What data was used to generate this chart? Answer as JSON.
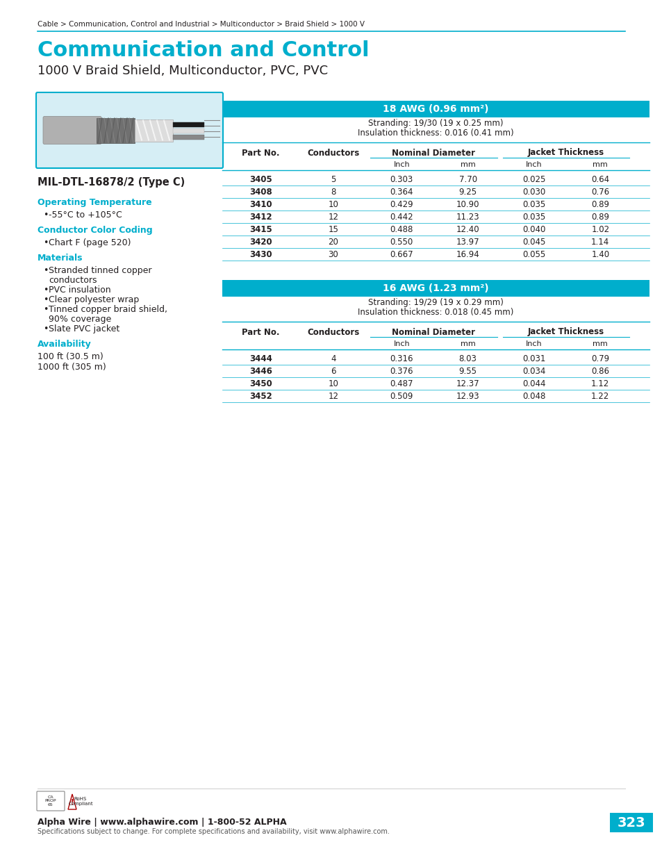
{
  "breadcrumb": "Cable > Communication, Control and Industrial > Multiconductor > Braid Shield > 1000 V",
  "main_title": "Communication and Control",
  "subtitle": "1000 V Braid Shield, Multiconductor, PVC, PVC",
  "mil_spec": "MIL-DTL-16878/2 (Type C)",
  "sections": [
    {
      "label": "Operating Temperature",
      "items": [
        "-55°C to +105°C"
      ]
    },
    {
      "label": "Conductor Color Coding",
      "items": [
        "Chart F (page 520)"
      ]
    },
    {
      "label": "Materials",
      "items": [
        "Stranded tinned copper\nconductors",
        "PVC insulation",
        "Clear polyester wrap",
        "Tinned copper braid shield,\n90% coverage",
        "Slate PVC jacket"
      ]
    },
    {
      "label": "Availability",
      "items_plain": [
        "100 ft (30.5 m)",
        "1000 ft (305 m)"
      ]
    }
  ],
  "table1": {
    "title": "18 AWG (0.96 mm²)",
    "stranding": "Stranding: 19/30 (19 x 0.25 mm)",
    "insulation": "Insulation thickness: 0.016 (0.41 mm)",
    "col_headers": [
      "Part No.",
      "Conductors",
      "Nominal Diameter",
      "",
      "Jacket Thickness",
      ""
    ],
    "sub_headers": [
      "",
      "",
      "Inch",
      "mm",
      "Inch",
      "mm"
    ],
    "rows": [
      [
        "3405",
        "5",
        "0.303",
        "7.70",
        "0.025",
        "0.64"
      ],
      [
        "3408",
        "8",
        "0.364",
        "9.25",
        "0.030",
        "0.76"
      ],
      [
        "3410",
        "10",
        "0.429",
        "10.90",
        "0.035",
        "0.89"
      ],
      [
        "3412",
        "12",
        "0.442",
        "11.23",
        "0.035",
        "0.89"
      ],
      [
        "3415",
        "15",
        "0.488",
        "12.40",
        "0.040",
        "1.02"
      ],
      [
        "3420",
        "20",
        "0.550",
        "13.97",
        "0.045",
        "1.14"
      ],
      [
        "3430",
        "30",
        "0.667",
        "16.94",
        "0.055",
        "1.40"
      ]
    ]
  },
  "table2": {
    "title": "16 AWG (1.23 mm²)",
    "stranding": "Stranding: 19/29 (19 x 0.29 mm)",
    "insulation": "Insulation thickness: 0.018 (0.45 mm)",
    "col_headers": [
      "Part No.",
      "Conductors",
      "Nominal Diameter",
      "",
      "Jacket Thickness",
      ""
    ],
    "sub_headers": [
      "",
      "",
      "Inch",
      "mm",
      "Inch",
      "mm"
    ],
    "rows": [
      [
        "3444",
        "4",
        "0.316",
        "8.03",
        "0.031",
        "0.79"
      ],
      [
        "3446",
        "6",
        "0.376",
        "9.55",
        "0.034",
        "0.86"
      ],
      [
        "3450",
        "10",
        "0.487",
        "12.37",
        "0.044",
        "1.12"
      ],
      [
        "3452",
        "12",
        "0.509",
        "12.93",
        "0.048",
        "1.22"
      ]
    ]
  },
  "footer_left": "Alpha Wire | www.alphawire.com | 1-800-52 ALPHA",
  "footer_sub": "Specifications subject to change. For complete specifications and availability, visit www.alphawire.com.",
  "page_number": "323",
  "cyan_color": "#00AECC",
  "table_header_bg": "#00AECC",
  "table_header_fg": "#FFFFFF",
  "table_line_color": "#00AECC",
  "image_bg": "#D6EEF5"
}
